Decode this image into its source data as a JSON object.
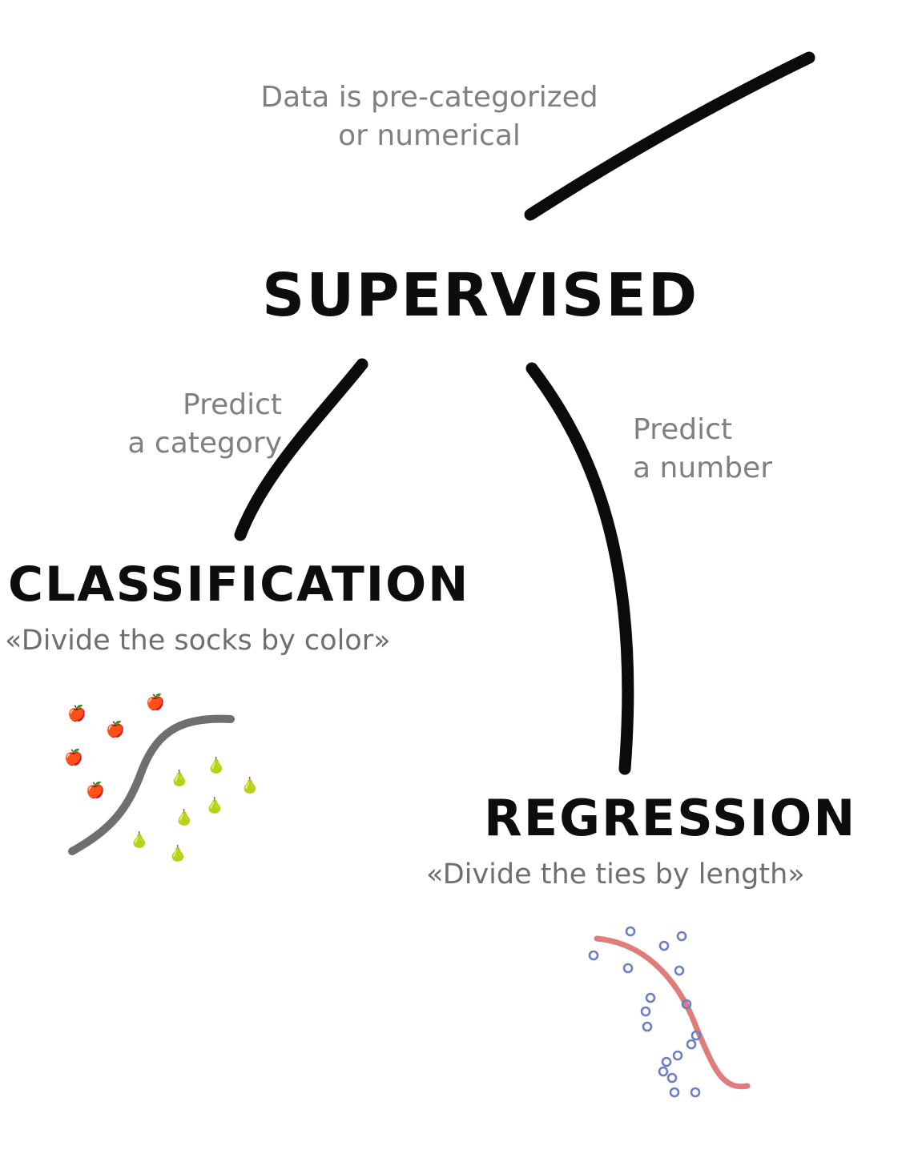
{
  "root_edge_label": {
    "line1": "Data is pre-categorized",
    "line2": "or numerical"
  },
  "root": {
    "title": "SUPERVISED"
  },
  "branches": {
    "classification": {
      "edge_label": {
        "line1": "Predict",
        "line2": "a category"
      },
      "title": "CLASSIFICATION",
      "example": "«Divide the socks by color»",
      "illustration": {
        "left_marker": "🍎",
        "right_marker": "🍐",
        "curve_color": "#6f6f70"
      }
    },
    "regression": {
      "edge_label": {
        "line1": "Predict",
        "line2": "a number"
      },
      "title": "REGRESSION",
      "example": "«Divide the ties by length»",
      "illustration": {
        "marker_color": "#6b7fc4",
        "curve_color": "#e07c7c"
      }
    }
  }
}
